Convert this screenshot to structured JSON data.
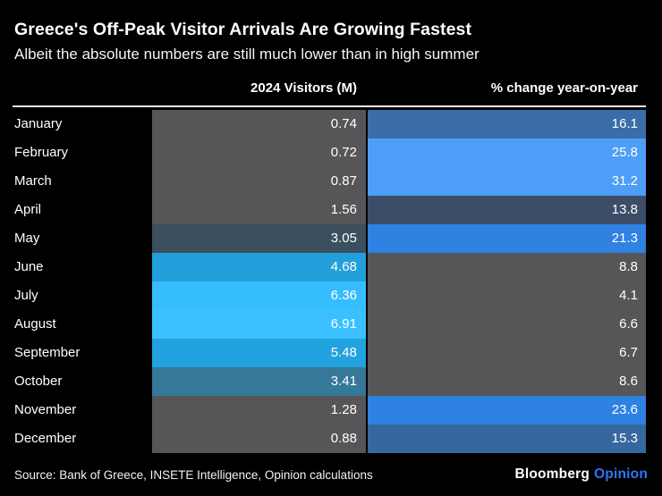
{
  "title": "Greece's Off-Peak Visitor Arrivals Are Growing Fastest",
  "subtitle": "Albeit the absolute numbers are still much lower than in high summer",
  "columns": {
    "visitors": "2024 Visitors (M)",
    "change": "% change year-on-year"
  },
  "source": "Source: Bank of Greece, INSETE Intelligence, Opinion calculations",
  "brand": {
    "name": "Bloomberg",
    "division": "Opinion",
    "division_color": "#2d78f4"
  },
  "colors": {
    "background": "#000000",
    "neutral_cell": "#565658",
    "rule": "#f0f0f0",
    "text": "#ffffff"
  },
  "rows": [
    {
      "month": "January",
      "visitors": "0.74",
      "change": "16.1",
      "visitors_color": "#565658",
      "change_color": "#3a6da9"
    },
    {
      "month": "February",
      "visitors": "0.72",
      "change": "25.8",
      "visitors_color": "#565658",
      "change_color": "#4d9ef7"
    },
    {
      "month": "March",
      "visitors": "0.87",
      "change": "31.2",
      "visitors_color": "#565658",
      "change_color": "#4d9ef7"
    },
    {
      "month": "April",
      "visitors": "1.56",
      "change": "13.8",
      "visitors_color": "#565658",
      "change_color": "#3c4d68"
    },
    {
      "month": "May",
      "visitors": "3.05",
      "change": "21.3",
      "visitors_color": "#3b4f5e",
      "change_color": "#2f81e2"
    },
    {
      "month": "June",
      "visitors": "4.68",
      "change": "8.8",
      "visitors_color": "#22a0dc",
      "change_color": "#565658"
    },
    {
      "month": "July",
      "visitors": "6.36",
      "change": "4.1",
      "visitors_color": "#36bdfe",
      "change_color": "#565658"
    },
    {
      "month": "August",
      "visitors": "6.91",
      "change": "6.6",
      "visitors_color": "#3ac0ff",
      "change_color": "#565658"
    },
    {
      "month": "September",
      "visitors": "5.48",
      "change": "6.7",
      "visitors_color": "#22a2de",
      "change_color": "#565658"
    },
    {
      "month": "October",
      "visitors": "3.41",
      "change": "8.6",
      "visitors_color": "#35789a",
      "change_color": "#565658"
    },
    {
      "month": "November",
      "visitors": "1.28",
      "change": "23.6",
      "visitors_color": "#565658",
      "change_color": "#2f81e2"
    },
    {
      "month": "December",
      "visitors": "0.88",
      "change": "15.3",
      "visitors_color": "#565658",
      "change_color": "#36689f"
    }
  ],
  "chart_data": {
    "type": "heatmap",
    "title": "Greece's Off-Peak Visitor Arrivals Are Growing Fastest",
    "subtitle": "Albeit the absolute numbers are still much lower than in high summer",
    "categories": [
      "January",
      "February",
      "March",
      "April",
      "May",
      "June",
      "July",
      "August",
      "September",
      "October",
      "November",
      "December"
    ],
    "series": [
      {
        "name": "2024 Visitors (M)",
        "values": [
          0.74,
          0.72,
          0.87,
          1.56,
          3.05,
          4.68,
          6.36,
          6.91,
          5.48,
          3.41,
          1.28,
          0.88
        ]
      },
      {
        "name": "% change year-on-year",
        "values": [
          16.1,
          25.8,
          31.2,
          13.8,
          21.3,
          8.8,
          4.1,
          6.6,
          6.7,
          8.6,
          23.6,
          15.3
        ]
      }
    ],
    "legend_position": "none",
    "grid": false,
    "note": "Color intensity encodes value: gray = low, cyan scale for visitor volume, blue scale for % change"
  }
}
